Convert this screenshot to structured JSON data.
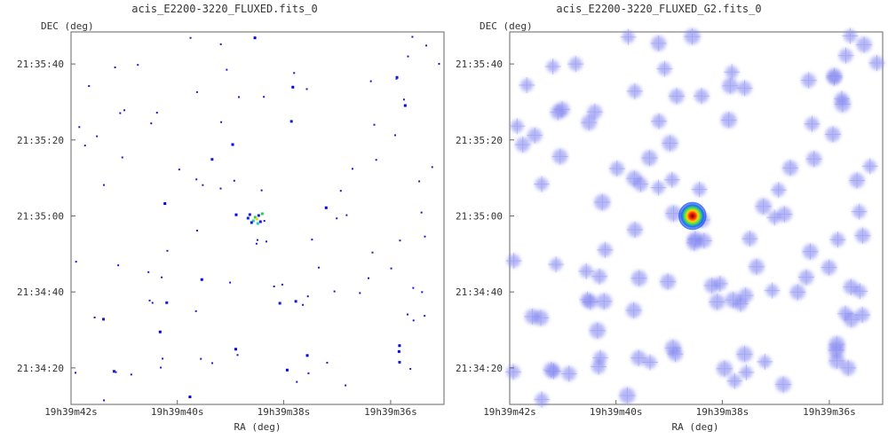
{
  "chart_data": [
    {
      "type": "heatmap",
      "title": "acis_E2200-3220_FLUXED.fits_0",
      "xlabel": "RA (deg)",
      "ylabel": "DEC (deg)",
      "x_tick_labels": [
        "19h39m42s",
        "19h39m40s",
        "19h39m38s",
        "19h39m36s"
      ],
      "y_tick_labels": [
        "21:35:40",
        "21:35:20",
        "21:35:00",
        "21:34:40",
        "21:34:20"
      ],
      "colormap": "blue-green-yellow-red",
      "source_center_label": "21:35:00",
      "noise_level": 0.25,
      "source_peak": 1.0
    },
    {
      "type": "heatmap",
      "title": "acis_E2200-3220_FLUXED_G2.fits_0",
      "xlabel": "RA (deg)",
      "ylabel": "DEC (deg)",
      "x_tick_labels": [
        "19h39m42s",
        "19h39m40s",
        "19h39m38s",
        "19h39m36s"
      ],
      "y_tick_labels": [
        "21:35:40",
        "21:35:20",
        "21:35:00",
        "21:34:40",
        "21:34:20"
      ],
      "colormap": "blue-green-yellow-red",
      "smoothing": "gaussian",
      "noise_level": 0.3,
      "source_peak": 1.0
    }
  ]
}
